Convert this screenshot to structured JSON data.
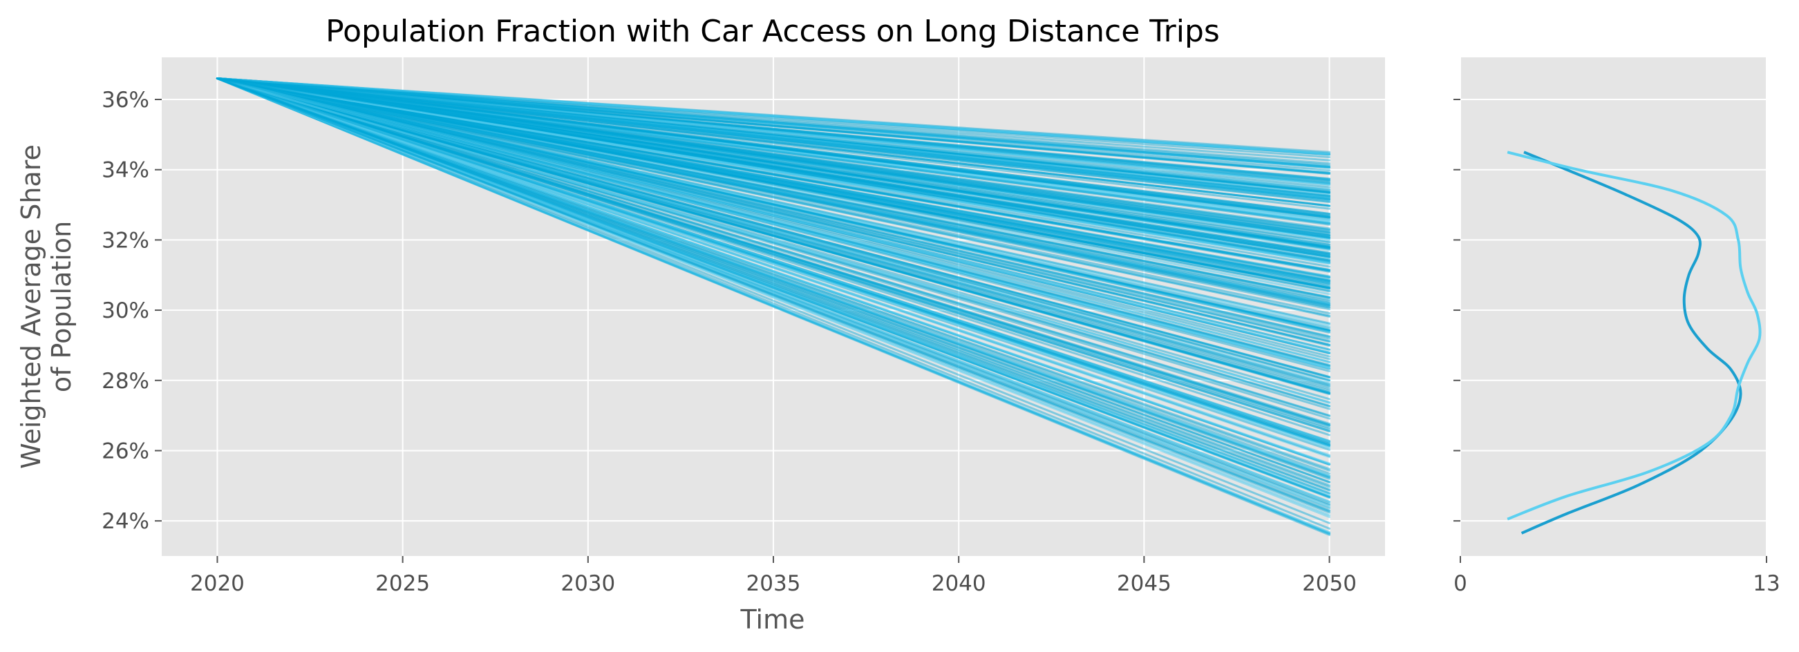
{
  "chart_data": [
    {
      "type": "line",
      "title": "Population Fraction with Car Access on Long Distance Trips",
      "xlabel": "Time",
      "ylabel": [
        "Weighted Average Share",
        "of Population"
      ],
      "x_start": 2020,
      "x_end": 2050,
      "start_value": 36.6,
      "end_value_min": 23.6,
      "end_value_max": 34.5,
      "num_series": 300,
      "xlim": [
        2018.5,
        2051.5
      ],
      "ylim": [
        23.0,
        37.2
      ],
      "x_ticks": [
        "2020",
        "2025",
        "2030",
        "2035",
        "2040",
        "2045",
        "2050"
      ],
      "x_tick_values": [
        2020,
        2025,
        2030,
        2035,
        2040,
        2045,
        2050
      ],
      "y_ticks": [
        "24%",
        "26%",
        "28%",
        "30%",
        "32%",
        "34%",
        "36%"
      ],
      "y_tick_values": [
        24,
        26,
        28,
        30,
        32,
        34,
        36
      ],
      "grid": true,
      "colors": {
        "line": "#00a6d6",
        "light": "#5bd0f0",
        "background": "#e5e5e5",
        "grid": "#ffffff"
      }
    },
    {
      "type": "line",
      "description_kind": "density",
      "x_ticks": [
        "0",
        "13"
      ],
      "x_tick_values": [
        0,
        13
      ],
      "xlim": [
        0,
        13
      ],
      "series": [
        {
          "color": "#1a9fcf",
          "points": [
            [
              2.6,
              23.65
            ],
            [
              4.5,
              24.2
            ],
            [
              7.5,
              25.0
            ],
            [
              10.0,
              25.9
            ],
            [
              11.4,
              26.8
            ],
            [
              11.9,
              27.6
            ],
            [
              11.5,
              28.3
            ],
            [
              10.5,
              28.9
            ],
            [
              9.7,
              29.6
            ],
            [
              9.5,
              30.3
            ],
            [
              9.7,
              31.0
            ],
            [
              10.1,
              31.6
            ],
            [
              10.1,
              32.1
            ],
            [
              9.2,
              32.6
            ],
            [
              7.0,
              33.3
            ],
            [
              4.7,
              33.95
            ],
            [
              2.7,
              34.5
            ]
          ]
        },
        {
          "color": "#5bd0f0",
          "points": [
            [
              2.0,
              24.05
            ],
            [
              4.5,
              24.7
            ],
            [
              8.0,
              25.4
            ],
            [
              10.5,
              26.2
            ],
            [
              11.5,
              27.0
            ],
            [
              11.8,
              27.8
            ],
            [
              12.2,
              28.5
            ],
            [
              12.7,
              29.2
            ],
            [
              12.6,
              29.9
            ],
            [
              12.2,
              30.5
            ],
            [
              11.9,
              31.2
            ],
            [
              11.8,
              32.0
            ],
            [
              11.3,
              32.7
            ],
            [
              9.0,
              33.4
            ],
            [
              5.0,
              34.0
            ],
            [
              2.0,
              34.5
            ]
          ]
        }
      ]
    }
  ]
}
